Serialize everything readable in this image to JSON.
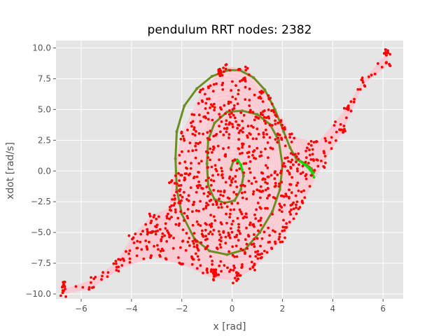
{
  "chart_data": {
    "type": "scatter",
    "title": "pendulum RRT nodes: 2382",
    "xlabel": "x [rad]",
    "ylabel": "xdot [rad/s]",
    "xlim": [
      -7.0,
      6.8
    ],
    "ylim": [
      -10.4,
      10.6
    ],
    "xticks": [
      -6,
      -4,
      -2,
      0,
      2,
      4,
      6
    ],
    "xtick_labels": [
      "−6",
      "−4",
      "−2",
      "0",
      "2",
      "4",
      "6"
    ],
    "yticks": [
      -10.0,
      -7.5,
      -5.0,
      -2.5,
      0.0,
      2.5,
      5.0,
      7.5,
      10.0
    ],
    "ytick_labels": [
      "−10.0",
      "−7.5",
      "−5.0",
      "−2.5",
      "0.0",
      "2.5",
      "5.0",
      "7.5",
      "10.0"
    ],
    "grid": true,
    "style": "ggplot",
    "colors": {
      "background": "#e5e5e5",
      "grid": "#ffffff",
      "tree_edges": "#ffc0cb",
      "nodes": "#ff0000",
      "path_segment": "#00e000",
      "path": "#6b8e23"
    },
    "series": [
      {
        "role": "tree-envelope",
        "color": "#ffc0cb",
        "outline": [
          [
            -6.7,
            -9.6
          ],
          [
            -5.5,
            -8.8
          ],
          [
            -4.6,
            -7.4
          ],
          [
            -4.0,
            -5.4
          ],
          [
            -3.2,
            -3.6
          ],
          [
            -2.5,
            -3.0
          ],
          [
            -2.4,
            -1.0
          ],
          [
            -2.0,
            3.0
          ],
          [
            -1.2,
            6.5
          ],
          [
            -0.3,
            8.5
          ],
          [
            0.6,
            8.3
          ],
          [
            1.5,
            6.0
          ],
          [
            2.4,
            2.8
          ],
          [
            3.4,
            2.3
          ],
          [
            4.5,
            5.0
          ],
          [
            5.2,
            7.4
          ],
          [
            6.2,
            9.7
          ],
          [
            6.2,
            8.6
          ],
          [
            5.2,
            7.0
          ],
          [
            4.4,
            3.2
          ],
          [
            3.6,
            0.5
          ],
          [
            2.8,
            -2.6
          ],
          [
            2.0,
            -5.6
          ],
          [
            0.8,
            -8.0
          ],
          [
            0.1,
            -8.9
          ],
          [
            -0.8,
            -8.7
          ],
          [
            -2.0,
            -7.6
          ],
          [
            -3.2,
            -7.0
          ],
          [
            -4.5,
            -8.0
          ],
          [
            -5.6,
            -9.6
          ],
          [
            -6.7,
            -10.0
          ]
        ]
      },
      {
        "role": "path-outer",
        "color": "#6b8e23",
        "points": [
          [
            -0.15,
            8.2
          ],
          [
            0.3,
            8.2
          ],
          [
            0.85,
            7.6
          ],
          [
            1.3,
            6.6
          ],
          [
            1.7,
            5.0
          ],
          [
            2.05,
            3.2
          ],
          [
            2.3,
            1.9
          ],
          [
            2.55,
            1.0
          ],
          [
            2.9,
            0.6
          ],
          [
            3.15,
            0.2
          ],
          [
            3.25,
            -0.1
          ]
        ]
      },
      {
        "role": "path-mid",
        "color": "#6b8e23",
        "points": [
          [
            -0.15,
            8.2
          ],
          [
            -0.8,
            7.7
          ],
          [
            -1.4,
            6.7
          ],
          [
            -1.9,
            5.3
          ],
          [
            -2.2,
            3.2
          ],
          [
            -2.25,
            1.0
          ],
          [
            -2.2,
            -1.5
          ],
          [
            -2.0,
            -3.5
          ],
          [
            -1.5,
            -5.5
          ],
          [
            -0.9,
            -6.5
          ],
          [
            -0.2,
            -6.8
          ],
          [
            0.5,
            -6.4
          ],
          [
            1.1,
            -5.0
          ],
          [
            1.6,
            -3.3
          ],
          [
            1.9,
            -1.5
          ],
          [
            2.0,
            0.5
          ],
          [
            1.85,
            2.5
          ],
          [
            1.5,
            3.8
          ],
          [
            1.0,
            4.6
          ],
          [
            0.4,
            4.9
          ],
          [
            -0.2,
            4.8
          ],
          [
            -0.7,
            3.9
          ],
          [
            -0.95,
            2.5
          ],
          [
            -1.0,
            0.6
          ],
          [
            -0.95,
            -1.2
          ],
          [
            -0.7,
            -2.3
          ],
          [
            -0.3,
            -2.6
          ],
          [
            0.1,
            -2.4
          ],
          [
            0.35,
            -1.5
          ],
          [
            0.45,
            -0.4
          ],
          [
            0.35,
            0.5
          ],
          [
            0.2,
            0.9
          ],
          [
            0.05,
            0.8
          ],
          [
            -0.05,
            0.2
          ]
        ]
      },
      {
        "role": "path-goal-segment",
        "color": "#00e000",
        "points": [
          [
            2.6,
            0.9
          ],
          [
            2.9,
            0.5
          ],
          [
            3.1,
            0.1
          ],
          [
            3.2,
            -0.2
          ],
          [
            3.25,
            -0.5
          ]
        ]
      },
      {
        "role": "path-start-segment",
        "color": "#00e000",
        "points": [
          [
            0.1,
            0.9
          ],
          [
            0.25,
            0.8
          ],
          [
            0.35,
            0.5
          ],
          [
            0.4,
            0.1
          ]
        ]
      },
      {
        "role": "tree-nodes",
        "color": "#ff0000",
        "clusters": [
          {
            "x": -6.7,
            "y": -9.3,
            "count": 6
          },
          {
            "x": 6.1,
            "y": 9.6,
            "count": 5
          },
          {
            "x": 6.1,
            "y": 8.7,
            "count": 2
          },
          {
            "x": -0.7,
            "y": -8.3,
            "count": 14
          },
          {
            "x": 0.2,
            "y": -8.5,
            "count": 8
          },
          {
            "x": -0.5,
            "y": 8.0,
            "count": 10
          }
        ]
      }
    ]
  }
}
